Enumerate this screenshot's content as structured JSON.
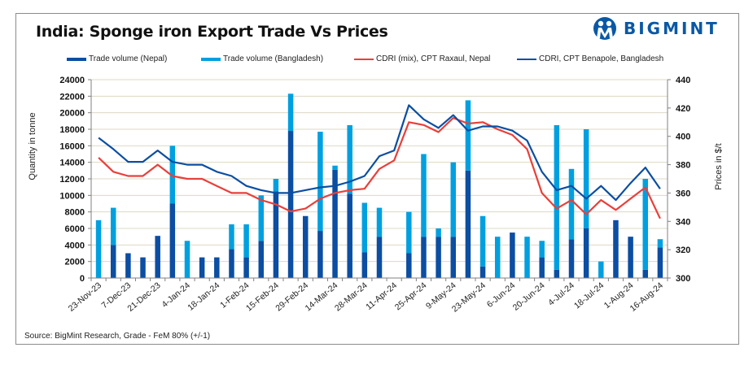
{
  "chart_data": {
    "type": "bar",
    "title": "India: Sponge iron Export Trade Vs Prices",
    "ylabel": "Quantity in tonne",
    "y2label": "Prices in $/t",
    "ylim": [
      0,
      24000
    ],
    "y2lim": [
      300,
      440
    ],
    "yticks": [
      0,
      2000,
      4000,
      6000,
      8000,
      10000,
      12000,
      14000,
      16000,
      18000,
      20000,
      22000,
      24000
    ],
    "y2ticks": [
      300,
      320,
      340,
      360,
      380,
      400,
      420,
      440
    ],
    "grid": true,
    "legend_position": "top",
    "x_tick_labels": [
      "23-Nov-23",
      "7-Dec-23",
      "21-Dec-23",
      "4-Jan-24",
      "18-Jan-24",
      "1-Feb-24",
      "15-Feb-24",
      "29-Feb-24",
      "14-Mar-24",
      "28-Mar-24",
      "11-Apr-24",
      "25-Apr-24",
      "9-May-24",
      "23-May-24",
      "6-Jun-24",
      "20-Jun-24",
      "4-Jul-24",
      "18-Jul-24",
      "1-Aug-24",
      "16-Aug-24"
    ],
    "num_periods": 39,
    "series": [
      {
        "name": "Trade volume (Nepal)",
        "kind": "stacked-bar",
        "axis": "left",
        "color": "#0b4ea2",
        "values": [
          0,
          4000,
          3000,
          2500,
          5100,
          9000,
          0,
          2500,
          2500,
          3500,
          2500,
          4500,
          10500,
          17800,
          7500,
          5700,
          13100,
          10200,
          3100,
          5000,
          0,
          3000,
          5000,
          5000,
          5000,
          13000,
          1400,
          0,
          5500,
          0,
          2500,
          1000,
          4700,
          6000,
          0,
          7000,
          5000,
          1000,
          3700
        ]
      },
      {
        "name": "Trade volume (Bangladesh)",
        "kind": "stacked-bar",
        "axis": "left",
        "color": "#00a0e0",
        "values": [
          7000,
          4500,
          0,
          0,
          0,
          7000,
          4500,
          0,
          0,
          3000,
          4000,
          5500,
          1500,
          4500,
          0,
          12000,
          500,
          8300,
          6000,
          3500,
          0,
          5000,
          10000,
          1000,
          9000,
          8500,
          6100,
          5000,
          0,
          5000,
          2000,
          17500,
          8500,
          12000,
          2000,
          0,
          0,
          11000,
          1000
        ]
      },
      {
        "name": "CDRI (mix), CPT Raxaul, Nepal",
        "kind": "line",
        "axis": "right",
        "color": "#e8403a",
        "values": [
          385,
          375,
          372,
          372,
          380,
          372,
          370,
          370,
          365,
          360,
          360,
          355,
          352,
          347,
          349,
          356,
          360,
          362,
          363,
          377,
          383,
          410,
          408,
          403,
          413,
          409,
          410,
          405,
          401,
          391,
          360,
          349,
          355,
          345,
          355,
          348,
          356,
          364,
          342
        ]
      },
      {
        "name": "CDRI, CPT Benapole, Bangladesh",
        "kind": "line",
        "axis": "right",
        "color": "#0b4ea2",
        "values": [
          399,
          391,
          382,
          382,
          390,
          382,
          380,
          380,
          375,
          372,
          365,
          362,
          360,
          360,
          362,
          364,
          365,
          368,
          372,
          386,
          390,
          422,
          412,
          406,
          415,
          404,
          407,
          407,
          404,
          397,
          375,
          362,
          365,
          356,
          365,
          355,
          367,
          378,
          363
        ]
      }
    ]
  },
  "header": {
    "title": "India: Sponge iron Export Trade Vs Prices",
    "brand": "BIGMINT"
  },
  "legend": [
    {
      "label": "Trade volume (Nepal)",
      "color": "#0b4ea2"
    },
    {
      "label": "Trade volume (Bangladesh)",
      "color": "#00a0e0"
    },
    {
      "label": "CDRI (mix), CPT Raxaul, Nepal",
      "color": "#e8403a"
    },
    {
      "label": "CDRI, CPT Benapole, Bangladesh",
      "color": "#0b4ea2"
    }
  ],
  "footer": {
    "source": "Source: BigMint Research, Grade - FeM 80% (+/-1)"
  }
}
